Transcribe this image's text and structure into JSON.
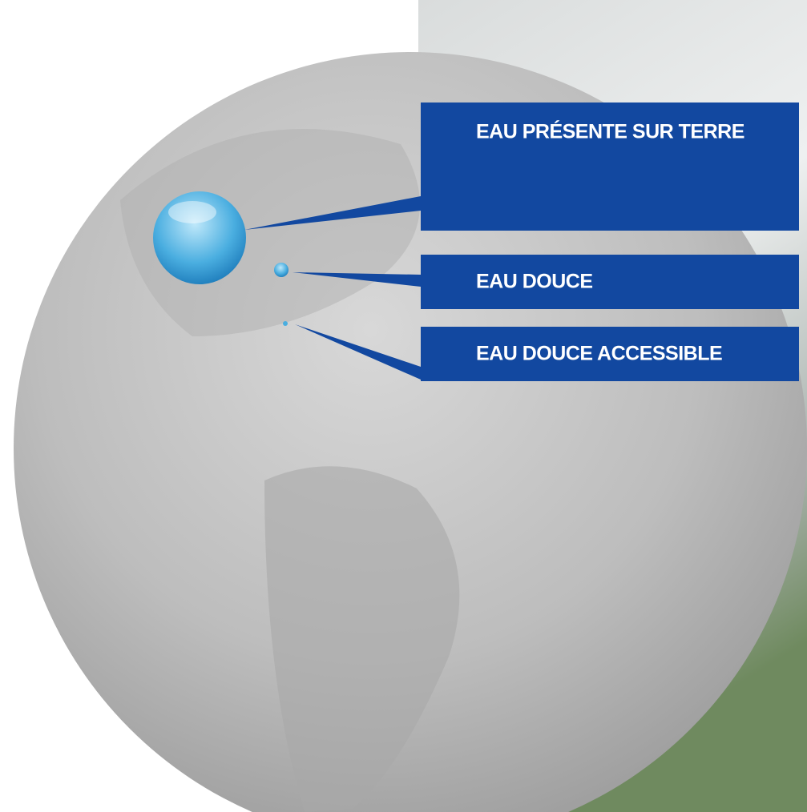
{
  "labels": [
    "EAU PRÉSENTE SUR TERRE",
    "EAU DOUCE",
    "EAU DOUCE ACCESSIBLE"
  ]
}
